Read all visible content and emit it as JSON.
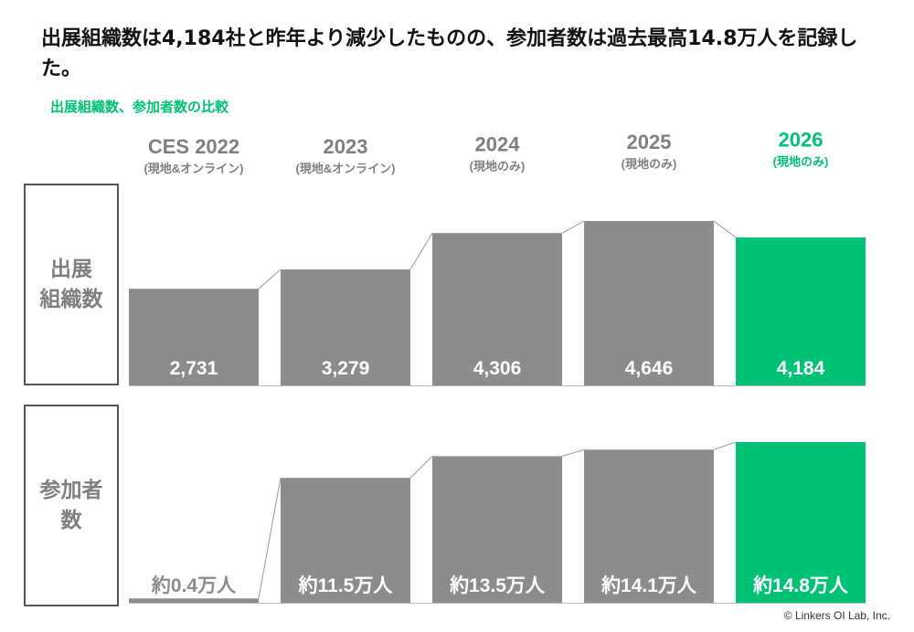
{
  "chart_data": {
    "type": "bar",
    "title": "出展組織数は4,184社と昨年より減少したものの、参加者数は過去最高14.8万人を記録した。",
    "subtitle": "出展組織数、参加者数の比較",
    "categories": [
      "CES 2022",
      "2023",
      "2024",
      "2025",
      "2026"
    ],
    "category_notes": [
      "(現地&オンライン)",
      "(現地&オンライン)",
      "(現地のみ)",
      "(現地のみ)",
      "(現地のみ)"
    ],
    "colors": [
      "#8c8c8c",
      "#8c8c8c",
      "#8c8c8c",
      "#8c8c8c",
      "#00c274"
    ],
    "series": [
      {
        "name": "出展\n組織数",
        "values": [
          2731,
          3279,
          4306,
          4646,
          4184
        ],
        "value_labels": [
          "2,731",
          "3,279",
          "4,306",
          "4,646",
          "4,184"
        ]
      },
      {
        "name": "参加者\n数",
        "values": [
          0.4,
          11.5,
          13.5,
          14.1,
          14.8
        ],
        "value_labels": [
          "約0.4万人",
          "約11.5万人",
          "約13.5万人",
          "約14.1万人",
          "約14.8万人"
        ]
      }
    ],
    "footnote": "© Linkers OI Lab, Inc."
  }
}
